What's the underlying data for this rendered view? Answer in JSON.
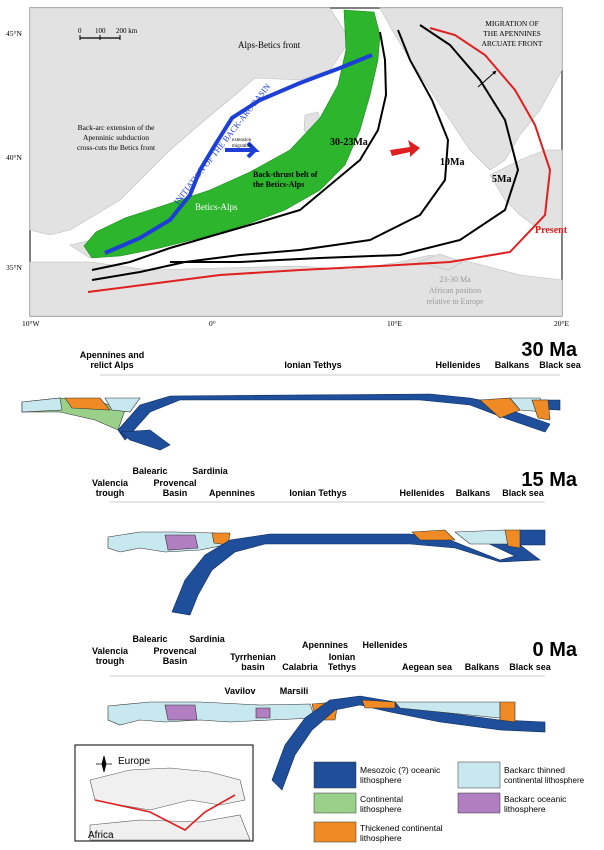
{
  "colors": {
    "oceanic": "#1f4e9a",
    "continental": "#9bd08a",
    "thickened": "#f08a24",
    "backarc_thinned": "#c8e8ef",
    "backarc_oceanic": "#b07ec1",
    "green_belt": "#2db52d",
    "present_front": "#e02020",
    "blue_axis": "#1d3fd6",
    "land": "#e3e3e3"
  },
  "map": {
    "lat_labels": [
      "45°N",
      "40°N",
      "35°N"
    ],
    "lon_labels": [
      "10°W",
      "0°",
      "10°E",
      "20°E"
    ],
    "scale_labels": [
      "0",
      "100",
      "200 km"
    ],
    "alps_betics_front": "Alps-Betics front",
    "migration_note": [
      "MIGRATION OF",
      "THE APENNINES",
      "ARCUATE FRONT"
    ],
    "initiation_label": "INITIATION OF THE BACK-ARC BASIN",
    "backarc_note": [
      "Back-arc extension of the",
      "Apenninic subduction",
      "cross-cuts the Betics front"
    ],
    "extension_note": [
      "extension",
      "migration"
    ],
    "age_30_23": "30-23Ma",
    "age_10": "10Ma",
    "age_5": "5Ma",
    "present": "Present",
    "backthrust": [
      "Back-thrust belt of",
      "the Betics-Alps"
    ],
    "betics_alps": "Betics-Alps",
    "african_note": [
      "23-30 Ma",
      "African position",
      "relative to Europe"
    ]
  },
  "sections": {
    "s30": {
      "age": "30 Ma",
      "labels": [
        "Apennines and",
        "relict Alps",
        "Ionian Tethys",
        "Hellenides",
        "Balkans",
        "Black sea"
      ]
    },
    "s15": {
      "age": "15 Ma",
      "labels": [
        "Balearic",
        "Sardinia",
        "Valencia",
        "Provencal",
        "trough",
        "Basin",
        "Apennines",
        "Ionian Tethys",
        "Hellenides",
        "Balkans",
        "Black sea"
      ]
    },
    "s0": {
      "age": "0 Ma",
      "labels": [
        "Balearic",
        "Sardinia",
        "Apennines",
        "Hellenides",
        "Valencia",
        "Provencal",
        "Ionian",
        "trough",
        "Basin",
        "Tyrrhenian",
        "Tethys",
        "Aegean sea",
        "Balkans",
        "Black sea",
        "basin",
        "Calabria",
        "Vavilov",
        "Marsili"
      ]
    }
  },
  "inset": {
    "europe": "Europe",
    "africa": "Africa"
  },
  "legend": [
    {
      "label": [
        "Mesozoic (?) oceanic",
        "lithosphere"
      ],
      "color": "#1f4e9a"
    },
    {
      "label": [
        "Continental",
        "lithosphere"
      ],
      "color": "#9bd08a"
    },
    {
      "label": [
        "Thickened continental",
        "lithosphere"
      ],
      "color": "#f08a24"
    },
    {
      "label": [
        "Backarc thinned",
        "continental lithosphere"
      ],
      "color": "#c8e8ef"
    },
    {
      "label": [
        "Backarc oceanic",
        "lithosphere"
      ],
      "color": "#b07ec1"
    }
  ]
}
